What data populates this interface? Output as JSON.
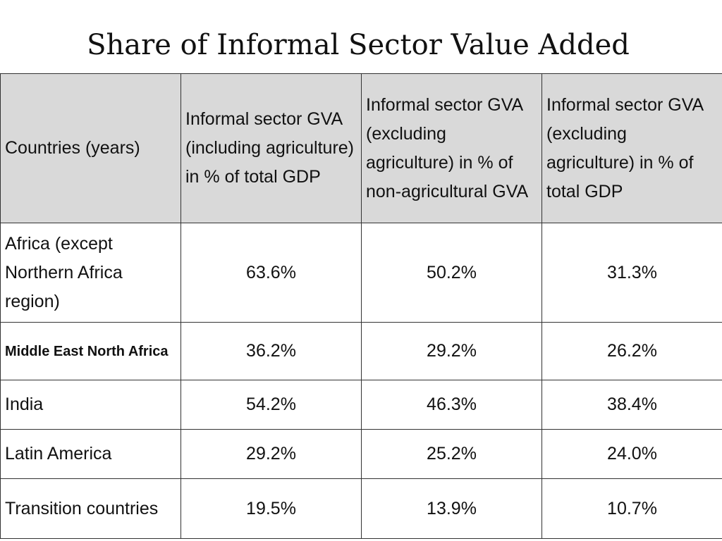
{
  "title": "Share of Informal Sector Value Added",
  "table": {
    "headers": [
      "Countries (years)",
      "Informal sector GVA (including agriculture) in % of total GDP",
      "Informal sector GVA (excluding agriculture) in % of non-agricultural GVA",
      "Informal sector GVA (excluding agriculture) in % of total GDP"
    ],
    "rows": [
      {
        "region": "Africa (except Northern Africa region)",
        "values": [
          "63.6%",
          "50.2%",
          "31.3%"
        ]
      },
      {
        "region": "Middle East North Africa",
        "values": [
          "36.2%",
          "29.2%",
          "26.2%"
        ]
      },
      {
        "region": "India",
        "values": [
          "54.2%",
          "46.3%",
          "38.4%"
        ]
      },
      {
        "region": "Latin America",
        "values": [
          "29.2%",
          "25.2%",
          "24.0%"
        ]
      },
      {
        "region": "Transition countries",
        "values": [
          "19.5%",
          "13.9%",
          "10.7%"
        ]
      }
    ]
  }
}
